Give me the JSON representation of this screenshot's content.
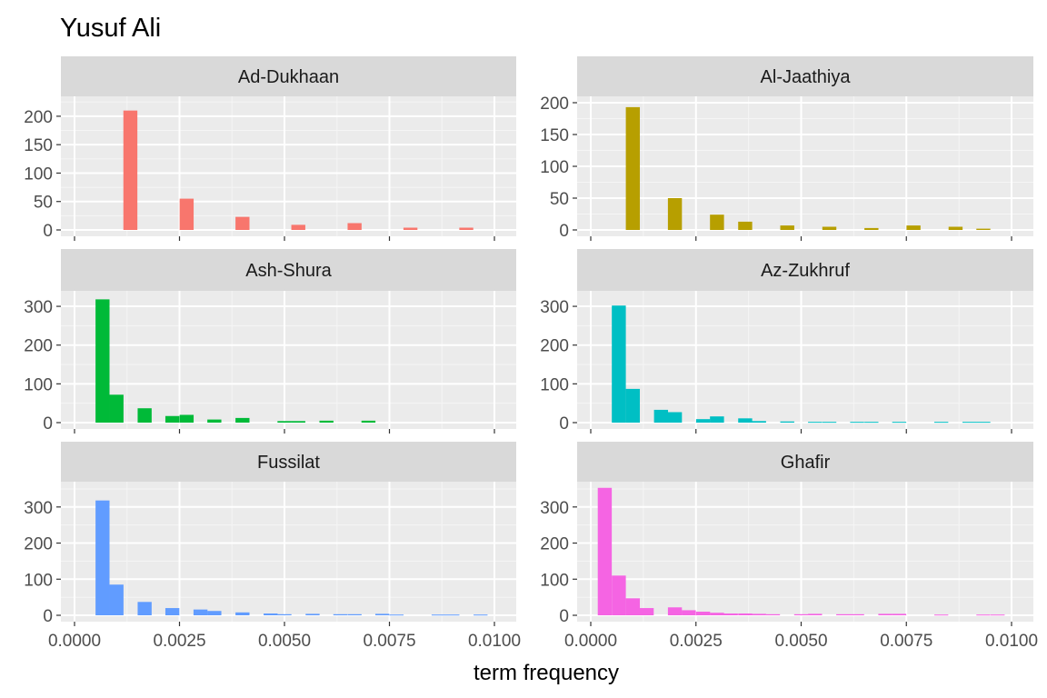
{
  "chart_data": {
    "type": "bar",
    "title": "Yusuf Ali",
    "xlabel": "term frequency",
    "ylabel": "",
    "xlim": [
      0,
      0.01
    ],
    "x_ticks": [
      "0.0000",
      "0.0025",
      "0.0050",
      "0.0075",
      "0.0100"
    ],
    "bin_width": 0.000333,
    "panels": [
      {
        "name": "Ad-Dukhaan",
        "color": "#F8766D",
        "ylim": [
          0,
          235
        ],
        "y_ticks": [
          0,
          50,
          100,
          150,
          200
        ],
        "bins": [
          {
            "x": 0.00133,
            "count": 210
          },
          {
            "x": 0.00267,
            "count": 55
          },
          {
            "x": 0.004,
            "count": 23
          },
          {
            "x": 0.00533,
            "count": 9
          },
          {
            "x": 0.00667,
            "count": 12
          },
          {
            "x": 0.008,
            "count": 4
          },
          {
            "x": 0.00933,
            "count": 4
          }
        ]
      },
      {
        "name": "Al-Jaathiya",
        "color": "#B79F00",
        "ylim": [
          0,
          210
        ],
        "y_ticks": [
          0,
          50,
          100,
          150,
          200
        ],
        "bins": [
          {
            "x": 0.001,
            "count": 193
          },
          {
            "x": 0.002,
            "count": 50
          },
          {
            "x": 0.003,
            "count": 24
          },
          {
            "x": 0.00367,
            "count": 13
          },
          {
            "x": 0.00467,
            "count": 7
          },
          {
            "x": 0.00567,
            "count": 5
          },
          {
            "x": 0.00667,
            "count": 3
          },
          {
            "x": 0.00767,
            "count": 7
          },
          {
            "x": 0.00867,
            "count": 5
          },
          {
            "x": 0.00933,
            "count": 2
          }
        ]
      },
      {
        "name": "Ash-Shura",
        "color": "#00BA38",
        "ylim": [
          0,
          340
        ],
        "y_ticks": [
          0,
          100,
          200,
          300
        ],
        "bins": [
          {
            "x": 0.000667,
            "count": 318
          },
          {
            "x": 0.001,
            "count": 72
          },
          {
            "x": 0.00167,
            "count": 37
          },
          {
            "x": 0.00233,
            "count": 17
          },
          {
            "x": 0.00267,
            "count": 20
          },
          {
            "x": 0.00333,
            "count": 8
          },
          {
            "x": 0.004,
            "count": 12
          },
          {
            "x": 0.005,
            "count": 4
          },
          {
            "x": 0.00533,
            "count": 4
          },
          {
            "x": 0.006,
            "count": 5
          },
          {
            "x": 0.007,
            "count": 5
          }
        ]
      },
      {
        "name": "Az-Zukhruf",
        "color": "#00BFC4",
        "ylim": [
          0,
          340
        ],
        "y_ticks": [
          0,
          100,
          200,
          300
        ],
        "bins": [
          {
            "x": 0.000667,
            "count": 302
          },
          {
            "x": 0.001,
            "count": 87
          },
          {
            "x": 0.00167,
            "count": 33
          },
          {
            "x": 0.002,
            "count": 27
          },
          {
            "x": 0.00267,
            "count": 9
          },
          {
            "x": 0.003,
            "count": 16
          },
          {
            "x": 0.00367,
            "count": 11
          },
          {
            "x": 0.004,
            "count": 4
          },
          {
            "x": 0.00467,
            "count": 3
          },
          {
            "x": 0.00533,
            "count": 2
          },
          {
            "x": 0.00567,
            "count": 2
          },
          {
            "x": 0.00633,
            "count": 2
          },
          {
            "x": 0.00667,
            "count": 2
          },
          {
            "x": 0.00733,
            "count": 2
          },
          {
            "x": 0.00833,
            "count": 2
          },
          {
            "x": 0.009,
            "count": 2
          },
          {
            "x": 0.00933,
            "count": 2
          }
        ]
      },
      {
        "name": "Fussilat",
        "color": "#619CFF",
        "ylim": [
          0,
          370
        ],
        "y_ticks": [
          0,
          100,
          200,
          300
        ],
        "bins": [
          {
            "x": 0.000667,
            "count": 318
          },
          {
            "x": 0.001,
            "count": 85
          },
          {
            "x": 0.00167,
            "count": 37
          },
          {
            "x": 0.00233,
            "count": 20
          },
          {
            "x": 0.003,
            "count": 16
          },
          {
            "x": 0.00333,
            "count": 12
          },
          {
            "x": 0.004,
            "count": 8
          },
          {
            "x": 0.00467,
            "count": 5
          },
          {
            "x": 0.005,
            "count": 3
          },
          {
            "x": 0.00567,
            "count": 4
          },
          {
            "x": 0.00633,
            "count": 3
          },
          {
            "x": 0.00667,
            "count": 3
          },
          {
            "x": 0.00733,
            "count": 4
          },
          {
            "x": 0.00767,
            "count": 2
          },
          {
            "x": 0.00867,
            "count": 2
          },
          {
            "x": 0.009,
            "count": 2
          },
          {
            "x": 0.00967,
            "count": 2
          }
        ]
      },
      {
        "name": "Ghafir",
        "color": "#F564E3",
        "ylim": [
          0,
          370
        ],
        "y_ticks": [
          0,
          100,
          200,
          300
        ],
        "bins": [
          {
            "x": 0.000333,
            "count": 353
          },
          {
            "x": 0.000667,
            "count": 110
          },
          {
            "x": 0.001,
            "count": 47
          },
          {
            "x": 0.00133,
            "count": 20
          },
          {
            "x": 0.002,
            "count": 22
          },
          {
            "x": 0.00233,
            "count": 14
          },
          {
            "x": 0.00267,
            "count": 10
          },
          {
            "x": 0.003,
            "count": 7
          },
          {
            "x": 0.00333,
            "count": 5
          },
          {
            "x": 0.00367,
            "count": 5
          },
          {
            "x": 0.004,
            "count": 4
          },
          {
            "x": 0.00433,
            "count": 3
          },
          {
            "x": 0.005,
            "count": 3
          },
          {
            "x": 0.00533,
            "count": 4
          },
          {
            "x": 0.006,
            "count": 3
          },
          {
            "x": 0.00633,
            "count": 3
          },
          {
            "x": 0.007,
            "count": 4
          },
          {
            "x": 0.00733,
            "count": 4
          },
          {
            "x": 0.00833,
            "count": 2
          },
          {
            "x": 0.00933,
            "count": 2
          },
          {
            "x": 0.00967,
            "count": 2
          }
        ]
      }
    ]
  }
}
